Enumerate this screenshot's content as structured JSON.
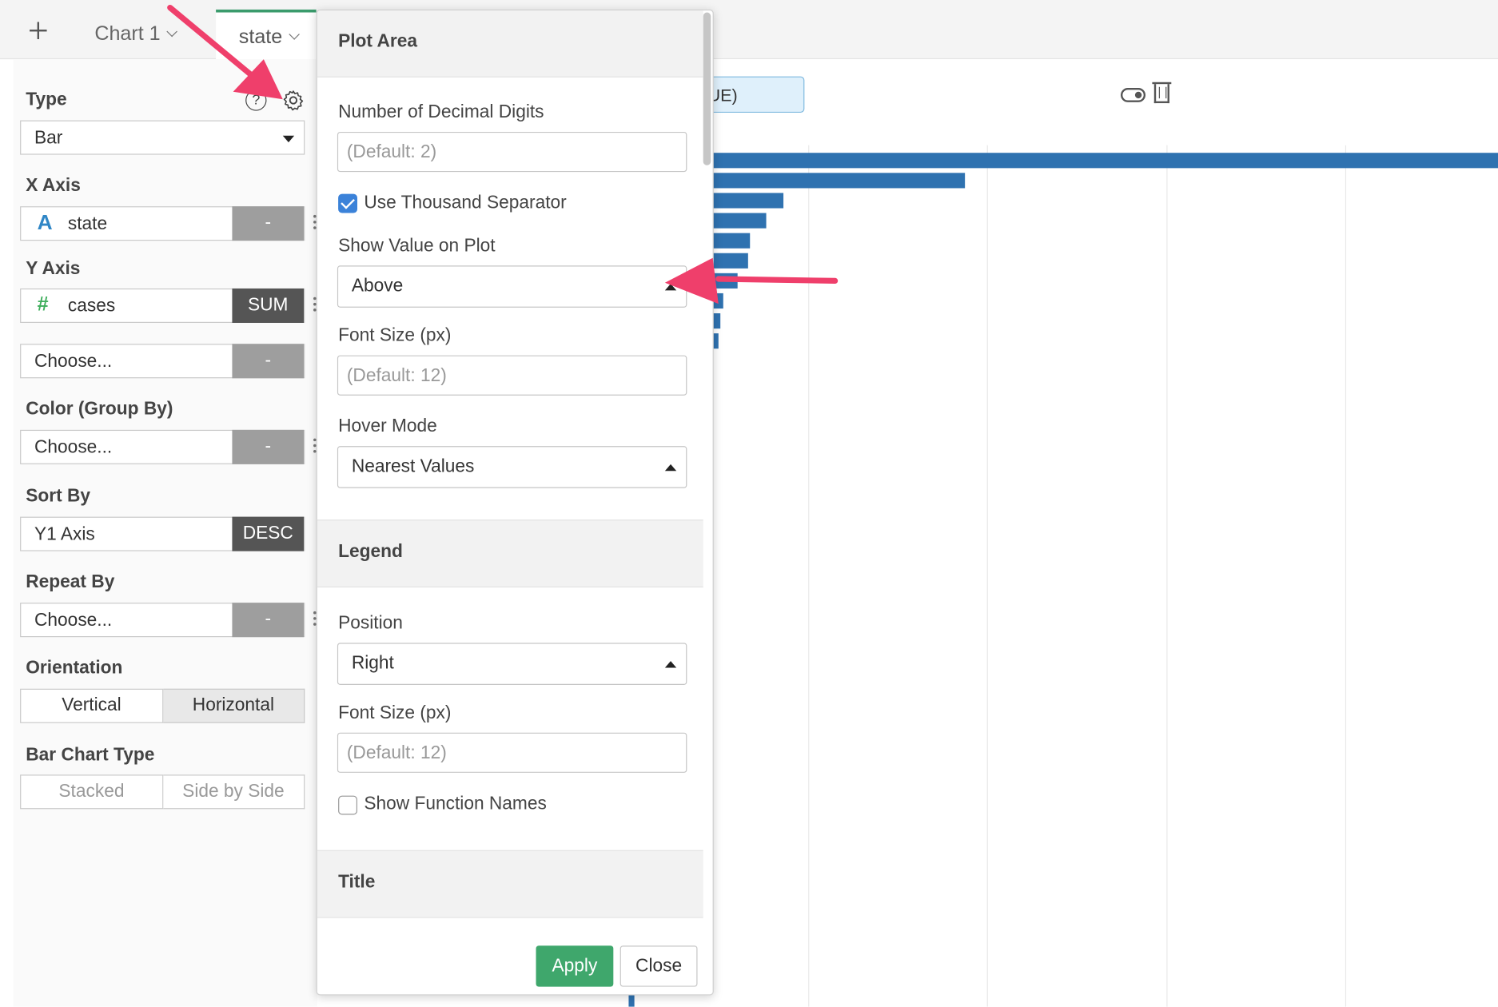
{
  "tabs": {
    "add_icon": "plus-icon",
    "items": [
      {
        "label": "Chart 1"
      },
      {
        "label": "state"
      }
    ]
  },
  "config": {
    "type": {
      "label": "Type",
      "value": "Bar"
    },
    "x_axis": {
      "label": "X Axis",
      "column": "state",
      "type_glyph": "A",
      "button": "-"
    },
    "y_axis": {
      "label": "Y Axis",
      "column": "cases",
      "type_glyph": "#",
      "button": "SUM"
    },
    "y_axis_extra": {
      "placeholder": "Choose...",
      "button": "-"
    },
    "color": {
      "label": "Color (Group By)",
      "placeholder": "Choose...",
      "button": "-"
    },
    "sort": {
      "label": "Sort By",
      "value": "Y1 Axis",
      "button": "DESC"
    },
    "repeat": {
      "label": "Repeat By",
      "placeholder": "Choose...",
      "button": "-"
    },
    "orientation": {
      "label": "Orientation",
      "options": [
        "Vertical",
        "Horizontal"
      ],
      "selected": "Horizontal"
    },
    "bar_type": {
      "label": "Bar Chart Type",
      "options": [
        "Stacked",
        "Side by Side"
      ]
    }
  },
  "filter_chip": {
    "text": "UE)"
  },
  "settings": {
    "plot_area": {
      "header": "Plot Area",
      "decimal_label": "Number of Decimal Digits",
      "decimal_placeholder": "(Default: 2)",
      "thousand_label": "Use Thousand Separator",
      "thousand_checked": true,
      "show_value_label": "Show Value on Plot",
      "show_value": "Above",
      "font_size_label": "Font Size (px)",
      "font_size_placeholder": "(Default: 12)",
      "hover_label": "Hover Mode",
      "hover_value": "Nearest Values"
    },
    "legend": {
      "header": "Legend",
      "position_label": "Position",
      "position_value": "Right",
      "font_size_label": "Font Size (px)",
      "font_size_placeholder": "(Default: 12)",
      "function_names_label": "Show Function Names",
      "function_names_checked": false
    },
    "title": {
      "header": "Title"
    },
    "apply": "Apply",
    "close": "Close"
  },
  "colors": {
    "bar": "#2f72b0",
    "accent": "#3fa76c",
    "arrow": "#ef3f6b",
    "checkbox": "#3b82d9"
  }
}
